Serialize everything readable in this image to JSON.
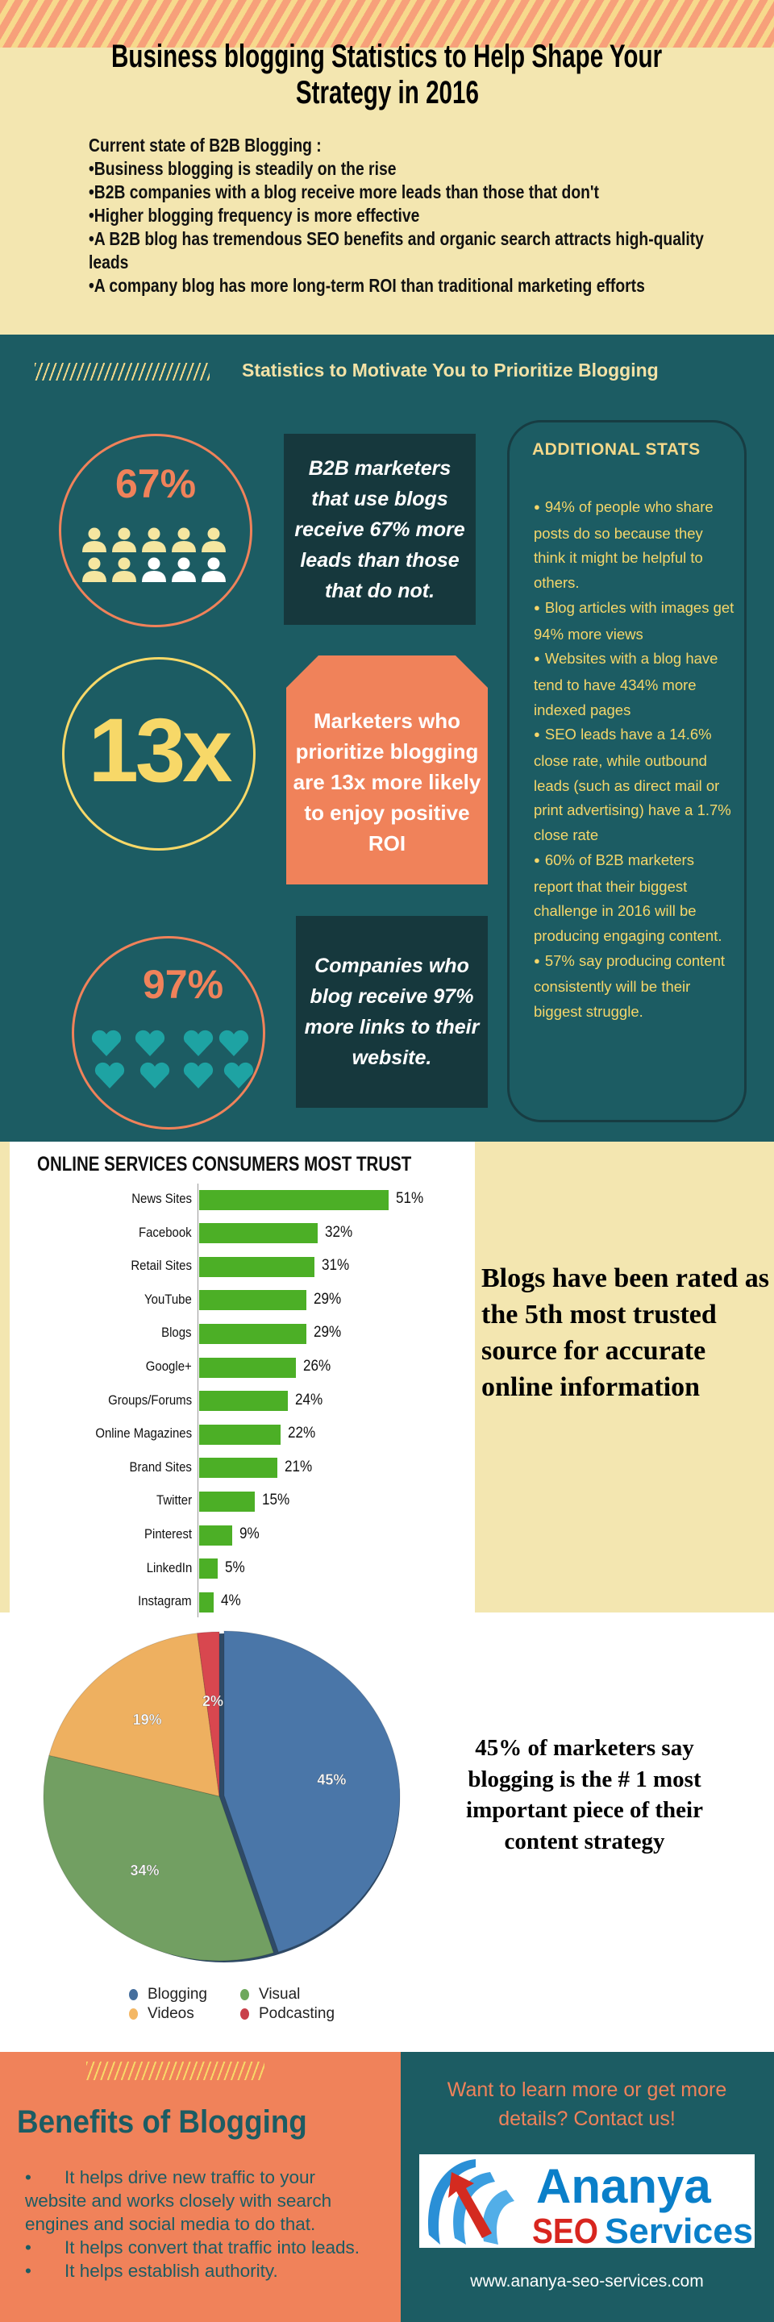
{
  "header": {
    "title_line1": "Business blogging Statistics to Help Shape Your",
    "title_line2": "Strategy in 2016",
    "intro_heading": "Current state of B2B Blogging :",
    "bullets": [
      "•Business blogging is steadily on the rise",
      "•B2B companies with a blog receive more leads than those that don't",
      "•Higher blogging frequency is more effective",
      "•A B2B blog has tremendous SEO benefits and organic search attracts high-quality leads",
      "•A company blog has more long-term ROI than traditional marketing efforts"
    ]
  },
  "stats": {
    "heading": "Statistics to Motivate You to Prioritize Blogging",
    "stat1": {
      "value": "67%",
      "text": "B2B marketers that use blogs receive 67% more leads than those that do not.",
      "icon": "person-icon",
      "highlighted_people": 7,
      "total_people": 10
    },
    "stat2": {
      "value": "13x",
      "text": "Marketers who prioritize blogging are 13x more likely to enjoy positive ROI"
    },
    "stat3": {
      "value": "97%",
      "text": "Companies who blog receive 97% more links to their website.",
      "icon": "heart-icon"
    },
    "additional": {
      "title": "ADDITIONAL STATS",
      "items": [
        "94% of people who share posts do so because they think it might be helpful to others.",
        "Blog articles with images get 94% more views",
        "Websites with a blog have tend to have 434% more indexed pages",
        "SEO leads have a 14.6% close rate, while outbound leads (such as direct mail or print advertising) have a 1.7% close rate",
        "60% of B2B marketers report that their biggest challenge in 2016 will be producing engaging content.",
        "57% say producing content consistently will be their biggest struggle."
      ]
    }
  },
  "trust_text": "Blogs have been rated as the 5th most trusted source for accurate online information",
  "pie_text": "45% of marketers say blogging is the # 1 most important piece of their content strategy",
  "benefits": {
    "title": "Benefits of Blogging",
    "items": [
      "It helps drive new traffic to your website and works closely with search engines and social media to do that.",
      "It helps convert that traffic into leads.",
      "It helps establish authority."
    ]
  },
  "contact": {
    "text": "Want to learn more or get more details? Contact us!",
    "logo_word1": "Ananya",
    "logo_word2": "SEO",
    "logo_word3": "Services",
    "url": "www.ananya-seo-services.com"
  },
  "colors": {
    "teal": "#1c5c63",
    "orange": "#f0825a",
    "yellow": "#f7d868",
    "cream": "#f3e6b0",
    "bar_green": "#4caf26"
  },
  "chart_data": [
    {
      "type": "bar",
      "orientation": "horizontal",
      "title": "ONLINE SERVICES CONSUMERS MOST TRUST",
      "categories": [
        "News Sites",
        "Facebook",
        "Retail Sites",
        "YouTube",
        "Blogs",
        "Google+",
        "Groups/Forums",
        "Online Magazines",
        "Brand Sites",
        "Twitter",
        "Pinterest",
        "LinkedIn",
        "Instagram"
      ],
      "values": [
        51,
        32,
        31,
        29,
        29,
        26,
        24,
        22,
        21,
        15,
        9,
        5,
        4
      ],
      "value_labels": [
        "51%",
        "32%",
        "31%",
        "29%",
        "29%",
        "26%",
        "24%",
        "22%",
        "21%",
        "15%",
        "9%",
        "5%",
        "4%"
      ],
      "unit": "%",
      "color": "#4caf26",
      "grid": false
    },
    {
      "type": "pie",
      "categories": [
        "Blogging",
        "Visual",
        "Videos",
        "Podcasting"
      ],
      "values": [
        45,
        34,
        19,
        2
      ],
      "value_labels": [
        "45%",
        "34%",
        "19%",
        "2%"
      ],
      "colors": [
        "#5a8cc4",
        "#7aac68",
        "#f4b764",
        "#e35a5e"
      ],
      "legend": "bottom"
    }
  ]
}
